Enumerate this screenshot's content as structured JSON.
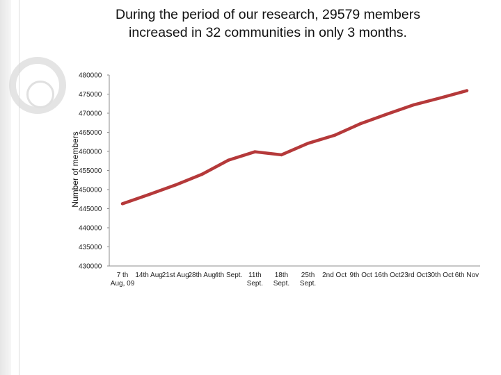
{
  "slide": {
    "title_lines": [
      "During the period of our research, 29579 members",
      "increased in 32 communities in only 3 months."
    ]
  },
  "chart_data": {
    "type": "line",
    "title": "",
    "xlabel": "",
    "ylabel": "Number of members",
    "ylim": [
      430000,
      480000
    ],
    "yticks": [
      430000,
      435000,
      440000,
      445000,
      450000,
      455000,
      460000,
      465000,
      470000,
      475000,
      480000
    ],
    "categories": [
      [
        "7 th",
        "Aug, 09"
      ],
      [
        "14th Aug"
      ],
      [
        "21st Aug"
      ],
      [
        "28th Aug"
      ],
      [
        "4th Sept."
      ],
      [
        "11th",
        "Sept."
      ],
      [
        "18th",
        "Sept."
      ],
      [
        "25th",
        "Sept."
      ],
      [
        "2nd Oct"
      ],
      [
        "9th Oct"
      ],
      [
        "16th Oct"
      ],
      [
        "23rd Oct"
      ],
      [
        "30th Oct"
      ],
      [
        "6th Nov"
      ]
    ],
    "series": [
      {
        "values": [
          446300,
          448700,
          451200,
          454000,
          457700,
          459900,
          459100,
          462100,
          464200,
          467300,
          469800,
          472200,
          474000,
          475900
        ],
        "color": "#b5393a"
      }
    ],
    "grid": false,
    "legend": "none"
  }
}
